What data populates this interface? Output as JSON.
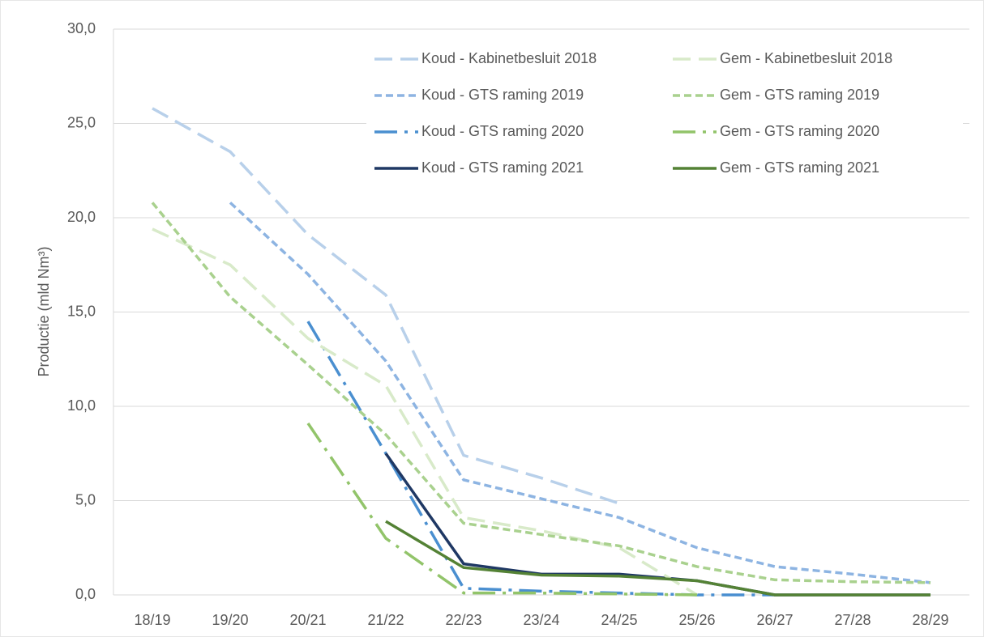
{
  "chart_data": {
    "type": "line",
    "y_label": "Productie (mld Nm³)",
    "categories": [
      "18/19",
      "19/20",
      "20/21",
      "21/22",
      "22/23",
      "23/24",
      "24/25",
      "25/26",
      "26/27",
      "27/28",
      "28/29"
    ],
    "ylim": [
      0,
      30
    ],
    "yticks": [
      {
        "value": 0,
        "label": "0,0"
      },
      {
        "value": 5,
        "label": "5,0"
      },
      {
        "value": 10,
        "label": "10,0"
      },
      {
        "value": 15,
        "label": "15,0"
      },
      {
        "value": 20,
        "label": "20,0"
      },
      {
        "value": 25,
        "label": "25,0"
      },
      {
        "value": 30,
        "label": "30,0"
      }
    ],
    "grid": true,
    "series": [
      {
        "name": "Koud - Kabinetbesluit 2018",
        "color": "#b8d0ea",
        "dash": "long",
        "values": [
          25.8,
          23.5,
          19.1,
          15.9,
          7.4,
          6.2,
          4.85,
          null,
          null,
          null,
          null
        ]
      },
      {
        "name": "Koud - GTS raming 2019",
        "color": "#8db4e2",
        "dash": "short",
        "values": [
          null,
          20.8,
          17.0,
          12.4,
          6.1,
          5.1,
          4.1,
          2.5,
          1.5,
          1.1,
          0.65
        ]
      },
      {
        "name": "Koud - GTS raming 2020",
        "color": "#4a8fd0",
        "dash": "dashdot",
        "values": [
          null,
          null,
          14.5,
          7.5,
          0.35,
          0.2,
          0.1,
          0.0,
          0.0,
          null,
          null
        ]
      },
      {
        "name": "Koud - GTS raming 2021",
        "color": "#1f3864",
        "dash": "solid",
        "values": [
          null,
          null,
          null,
          7.5,
          1.65,
          1.1,
          1.1,
          0.75,
          0.0,
          0.0,
          0.0
        ]
      },
      {
        "name": "Gem - Kabinetbesluit 2018",
        "color": "#d8eac9",
        "dash": "long",
        "values": [
          19.4,
          17.5,
          13.6,
          11.1,
          4.1,
          3.4,
          2.5,
          0.0,
          null,
          null,
          null
        ]
      },
      {
        "name": "Gem - GTS raming 2019",
        "color": "#a9d18e",
        "dash": "short",
        "values": [
          20.8,
          15.8,
          12.2,
          8.5,
          3.8,
          3.2,
          2.6,
          1.5,
          0.8,
          0.7,
          0.65
        ]
      },
      {
        "name": "Gem - GTS raming 2020",
        "color": "#92c46a",
        "dash": "dashdot",
        "values": [
          null,
          null,
          9.1,
          3.0,
          0.1,
          0.1,
          0.05,
          0.0,
          null,
          null,
          null
        ]
      },
      {
        "name": "Gem - GTS raming 2021",
        "color": "#548235",
        "dash": "solid",
        "values": [
          null,
          null,
          null,
          3.9,
          1.45,
          1.05,
          1.0,
          0.75,
          0.0,
          0.0,
          0.0
        ]
      }
    ]
  }
}
